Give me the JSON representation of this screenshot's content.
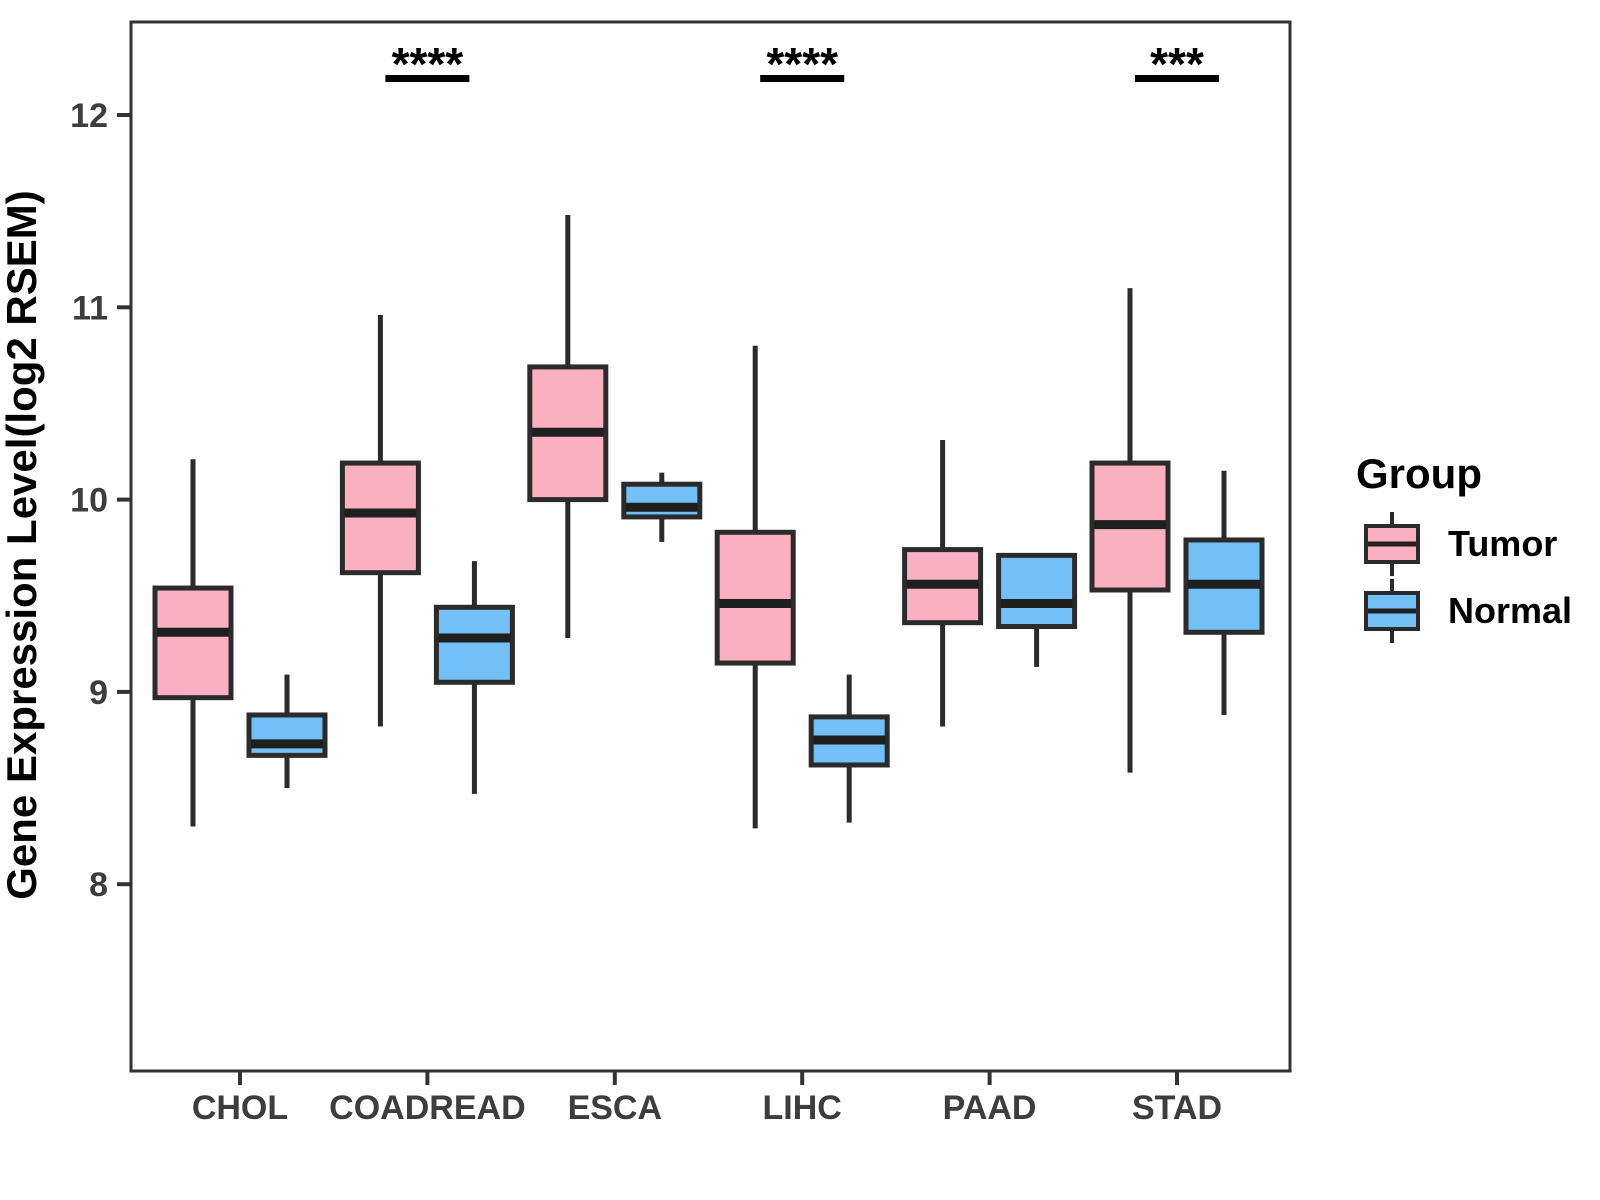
{
  "chart_data": {
    "type": "boxplot",
    "title": "",
    "y_axis": {
      "label": "Gene Expression Level(log2 RSEM)",
      "ticks": [
        12,
        11,
        10,
        9,
        8
      ],
      "range": [
        7.0,
        12.5
      ],
      "grid": false
    },
    "x_axis": {
      "label": "",
      "categories": [
        "CHOL",
        "COADREAD",
        "ESCA",
        "LIHC",
        "PAAD",
        "STAD"
      ]
    },
    "legend": {
      "title": "Group",
      "position": "right",
      "entries": [
        {
          "label": "Tumor",
          "color_key": "tumor_fill"
        },
        {
          "label": "Normal",
          "color_key": "normal_fill"
        }
      ]
    },
    "colors": {
      "tumor_fill": "#FBB0C1",
      "normal_fill": "#72C0F6",
      "box_stroke": "#2B2B2B",
      "median_stroke": "#1F1F1F",
      "panel_border": "#333333",
      "axis_text": "#3D3D3D",
      "significance": "#000000"
    },
    "series": [
      {
        "name": "Tumor",
        "color_key": "tumor_fill",
        "boxes": [
          {
            "category": "CHOL",
            "low": 8.3,
            "q1": 8.97,
            "median": 9.31,
            "q3": 9.54,
            "high": 10.21
          },
          {
            "category": "COADREAD",
            "low": 8.82,
            "q1": 9.62,
            "median": 9.93,
            "q3": 10.19,
            "high": 10.96
          },
          {
            "category": "ESCA",
            "low": 9.28,
            "q1": 10.0,
            "median": 10.35,
            "q3": 10.69,
            "high": 11.48
          },
          {
            "category": "LIHC",
            "low": 8.29,
            "q1": 9.15,
            "median": 9.46,
            "q3": 9.83,
            "high": 10.8
          },
          {
            "category": "PAAD",
            "low": 8.82,
            "q1": 9.36,
            "median": 9.56,
            "q3": 9.74,
            "high": 10.31
          },
          {
            "category": "STAD",
            "low": 8.58,
            "q1": 9.53,
            "median": 9.87,
            "q3": 10.19,
            "high": 11.1
          }
        ]
      },
      {
        "name": "Normal",
        "color_key": "normal_fill",
        "boxes": [
          {
            "category": "CHOL",
            "low": 8.5,
            "q1": 8.67,
            "median": 8.73,
            "q3": 8.88,
            "high": 9.09
          },
          {
            "category": "COADREAD",
            "low": 8.47,
            "q1": 9.05,
            "median": 9.28,
            "q3": 9.44,
            "high": 9.68
          },
          {
            "category": "ESCA",
            "low": 9.78,
            "q1": 9.91,
            "median": 9.96,
            "q3": 10.08,
            "high": 10.14
          },
          {
            "category": "LIHC",
            "low": 8.32,
            "q1": 8.62,
            "median": 8.75,
            "q3": 8.87,
            "high": 9.09
          },
          {
            "category": "PAAD",
            "low": 9.13,
            "q1": 9.34,
            "median": 9.46,
            "q3": 9.71,
            "high": null
          },
          {
            "category": "STAD",
            "low": 8.88,
            "q1": 9.31,
            "median": 9.56,
            "q3": 9.79,
            "high": 10.15
          }
        ]
      }
    ],
    "significance": [
      {
        "category": "COADREAD",
        "label": "****"
      },
      {
        "category": "LIHC",
        "label": "****"
      },
      {
        "category": "STAD",
        "label": "***"
      }
    ]
  }
}
